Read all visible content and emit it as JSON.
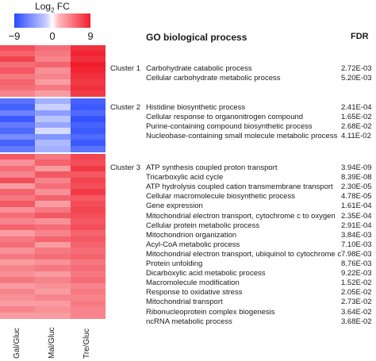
{
  "chart_data": {
    "type": "heatmap",
    "scale": {
      "title": "Log₂ FC",
      "title_base": "Log",
      "title_sub": "2",
      "title_suffix": " FC",
      "min": -9,
      "max": 9,
      "ticks": [
        "−9",
        "0",
        "9"
      ],
      "colors": {
        "low": "#2b4bff",
        "mid": "#ffffff",
        "high": "#f01d2c"
      }
    },
    "columns": [
      "Gal/Gluc",
      "Mal/Gluc",
      "Tre/Gluc"
    ],
    "go_header": "GO biological process",
    "fdr_header": "FDR",
    "clusters": [
      {
        "name": "Cluster 1",
        "rows": 9,
        "profile": [
          [
            6.5,
            5.0,
            8.0
          ],
          [
            5.5,
            4.5,
            8.5
          ],
          [
            7.0,
            4.0,
            8.0
          ],
          [
            5.0,
            5.5,
            9.0
          ],
          [
            6.0,
            3.5,
            8.5
          ],
          [
            4.5,
            4.0,
            8.0
          ],
          [
            5.5,
            3.0,
            7.5
          ],
          [
            5.0,
            4.5,
            8.0
          ],
          [
            4.0,
            3.0,
            7.5
          ]
        ],
        "terms": [
          {
            "term": "Carbohydrate catabolic process",
            "fdr": "2.72E-03"
          },
          {
            "term": "Cellular carbohydrate metabolic process",
            "fdr": "5.20E-03"
          }
        ]
      },
      {
        "name": "Cluster 2",
        "rows": 9,
        "profile": [
          [
            -6.5,
            -3.0,
            -7.5
          ],
          [
            -7.5,
            -1.5,
            -8.0
          ],
          [
            -5.5,
            -4.0,
            -7.0
          ],
          [
            -8.0,
            -2.0,
            -8.5
          ],
          [
            -6.0,
            -3.5,
            -7.5
          ],
          [
            -7.0,
            -1.0,
            -8.0
          ],
          [
            -5.0,
            -4.5,
            -7.0
          ],
          [
            -7.5,
            -2.5,
            -8.0
          ],
          [
            -6.0,
            -3.0,
            -6.5
          ]
        ],
        "terms": [
          {
            "term": "Histidine biosynthetic process",
            "fdr": "2.41E-04"
          },
          {
            "term": "Cellular response to organonitrogen compound",
            "fdr": "1.65E-02"
          },
          {
            "term": "Purine-containing compound biosynthetic process",
            "fdr": "2.68E-02"
          },
          {
            "term": "Nucleobase-containing small molecule metabolic process",
            "fdr": "4.11E-02"
          }
        ]
      },
      {
        "name": "Cluster 3",
        "rows": 28,
        "profile": [
          [
            6.0,
            4.5,
            7.0
          ],
          [
            3.5,
            5.5,
            6.5
          ],
          [
            5.0,
            3.0,
            7.5
          ],
          [
            4.0,
            6.0,
            6.0
          ],
          [
            6.5,
            4.0,
            7.0
          ],
          [
            3.0,
            5.0,
            6.5
          ],
          [
            5.5,
            3.5,
            7.5
          ],
          [
            4.5,
            5.5,
            6.0
          ],
          [
            6.0,
            3.0,
            6.5
          ],
          [
            3.5,
            4.5,
            7.0
          ],
          [
            5.0,
            6.0,
            6.5
          ],
          [
            4.0,
            3.5,
            6.0
          ],
          [
            5.5,
            5.0,
            6.5
          ],
          [
            3.0,
            4.0,
            5.5
          ],
          [
            4.5,
            5.5,
            6.0
          ],
          [
            5.0,
            3.0,
            5.5
          ],
          [
            3.5,
            4.5,
            5.0
          ],
          [
            4.5,
            5.0,
            5.5
          ],
          [
            3.0,
            3.5,
            4.5
          ],
          [
            4.0,
            4.5,
            5.0
          ],
          [
            3.5,
            3.0,
            4.5
          ],
          [
            4.5,
            4.0,
            5.0
          ],
          [
            3.0,
            3.5,
            4.0
          ],
          [
            4.0,
            3.0,
            4.5
          ],
          [
            3.5,
            4.0,
            4.0
          ],
          [
            3.0,
            3.0,
            4.5
          ],
          [
            4.0,
            3.5,
            4.0
          ],
          [
            3.0,
            3.0,
            4.0
          ]
        ],
        "terms": [
          {
            "term": "ATP synthesis coupled proton transport",
            "fdr": "3.94E-09"
          },
          {
            "term": "Tricarboxylic acid cycle",
            "fdr": "8.39E-08"
          },
          {
            "term": "ATP hydrolysis coupled cation transmembrane transport",
            "fdr": "2.30E-05"
          },
          {
            "term": "Cellular macromolecule biosynthetic process",
            "fdr": "4.78E-05"
          },
          {
            "term": "Gene expression",
            "fdr": "1.61E-04"
          },
          {
            "term": "Mitochondrial electron transport, cytochrome c to oxygen",
            "fdr": "2.35E-04"
          },
          {
            "term": "Cellular protein metabolic process",
            "fdr": "2.91E-04"
          },
          {
            "term": "Mitochondrion organization",
            "fdr": "3.84E-03"
          },
          {
            "term": "Acyl-CoA metabolic process",
            "fdr": "7.10E-03"
          },
          {
            "term": "Mitochondrial electron transport, ubiquinol to cytochrome c",
            "fdr": "7.98E-03"
          },
          {
            "term": "Protein unfolding",
            "fdr": "8.76E-03"
          },
          {
            "term": "Dicarboxylic acid metabolic process",
            "fdr": "9.22E-03"
          },
          {
            "term": "Macromolecule modification",
            "fdr": "1.52E-02"
          },
          {
            "term": "Response to oxidative stress",
            "fdr": "2.05E-02"
          },
          {
            "term": "Mitochondrial transport",
            "fdr": "2.73E-02"
          },
          {
            "term": "Ribonucleoprotein complex biogenesis",
            "fdr": "3.64E-02"
          },
          {
            "term": "ncRNA metabolic process",
            "fdr": "3.68E-02"
          }
        ]
      }
    ]
  }
}
